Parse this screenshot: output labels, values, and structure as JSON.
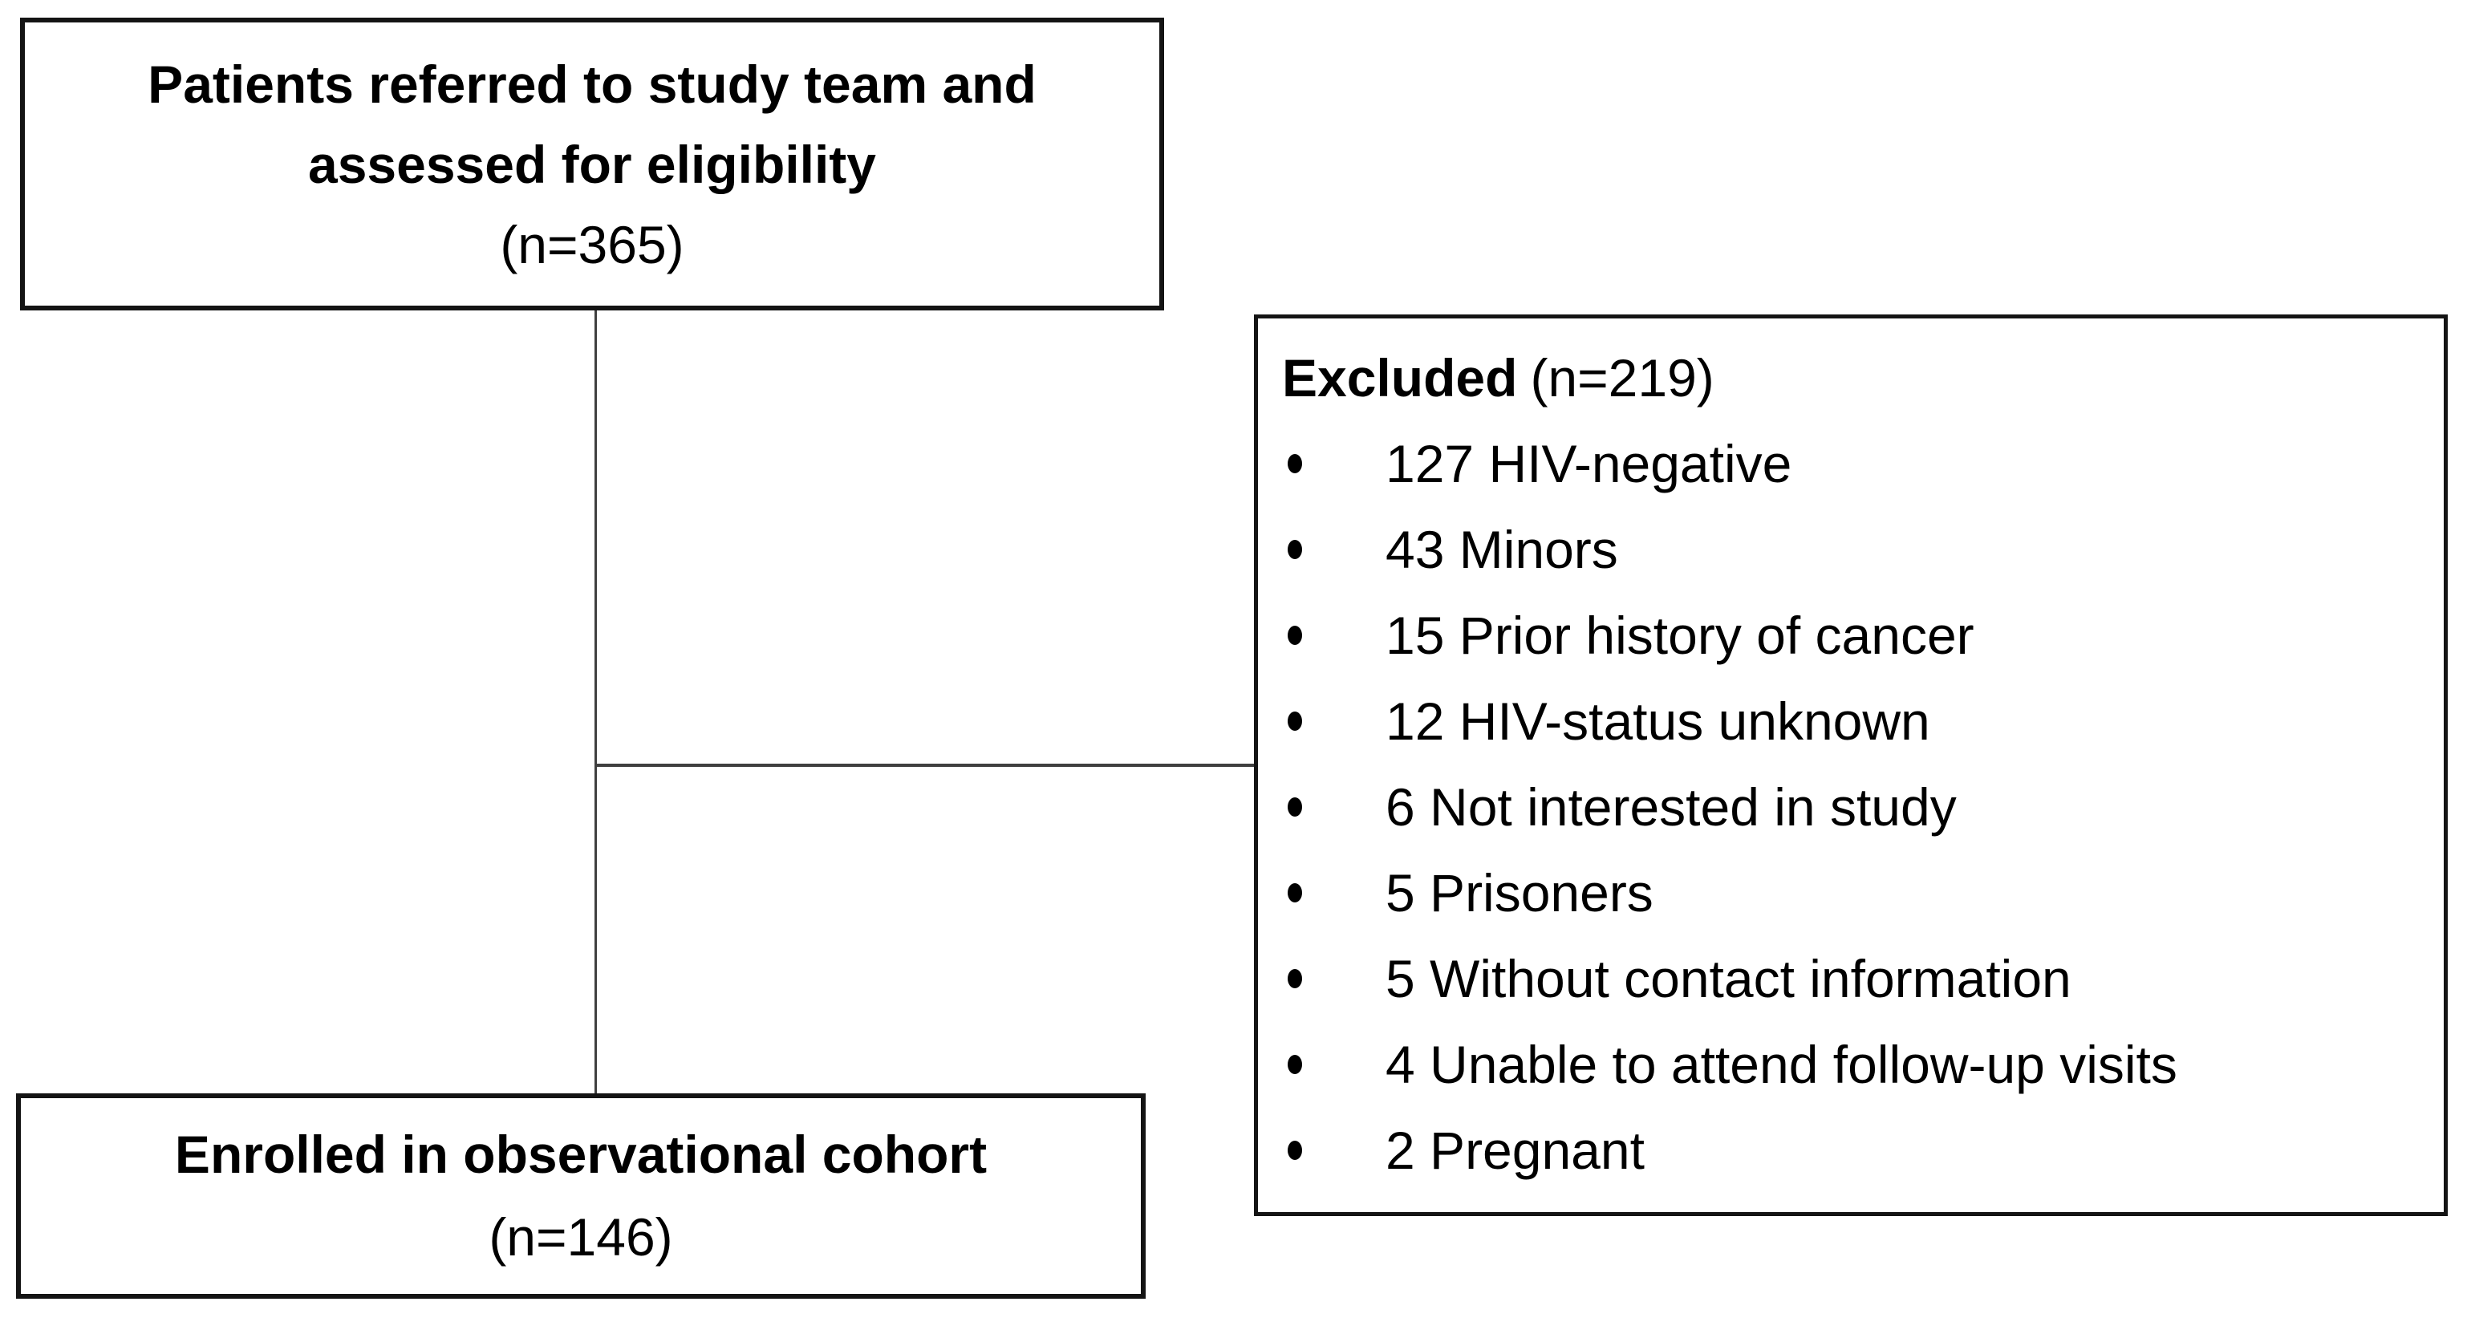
{
  "top_box": {
    "title": "Patients referred to study team and assessed for eligibility",
    "count": "(n=365)"
  },
  "excluded_box": {
    "title": "Excluded",
    "count": "(n=219)",
    "items": [
      "127 HIV-negative",
      "43 Minors",
      "15 Prior history of cancer",
      "12 HIV-status unknown",
      "6 Not interested in study",
      "5 Prisoners",
      "5 Without contact information",
      "4 Unable to attend follow-up visits",
      "2 Pregnant"
    ]
  },
  "bottom_box": {
    "title": "Enrolled in observational cohort",
    "count": "(n=146)"
  },
  "colors": {
    "background": "#ffffff",
    "box_border": "#141414",
    "connector_line": "#3f3f3f",
    "text": "#000000"
  }
}
